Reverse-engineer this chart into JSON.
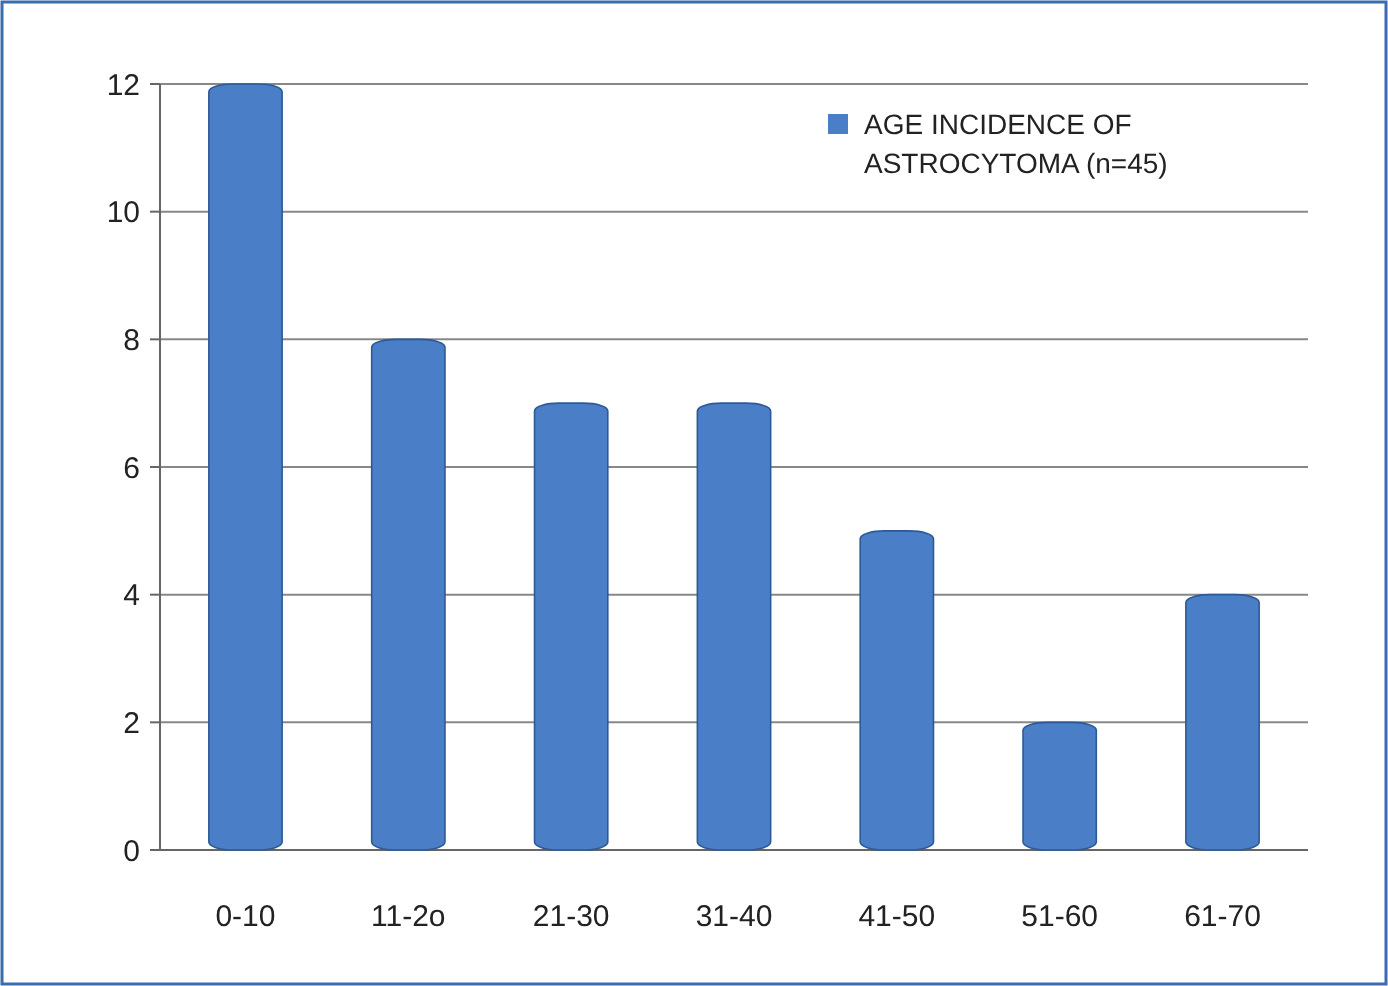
{
  "chart_data": {
    "type": "bar",
    "categories": [
      "0-10",
      "11-2o",
      "21-30",
      "31-40",
      "41-50",
      "51-60",
      "61-70"
    ],
    "series": [
      {
        "name": "AGE INCIDENCE  OF ASTROCYTOMA (n=45)",
        "color": "#4a7ec6",
        "values": [
          12,
          8,
          7,
          7,
          5,
          2,
          4
        ]
      }
    ],
    "ylim": [
      0,
      12
    ],
    "yticks": [
      0,
      2,
      4,
      6,
      8,
      10,
      12
    ],
    "grid": "y",
    "legend": "top right"
  }
}
